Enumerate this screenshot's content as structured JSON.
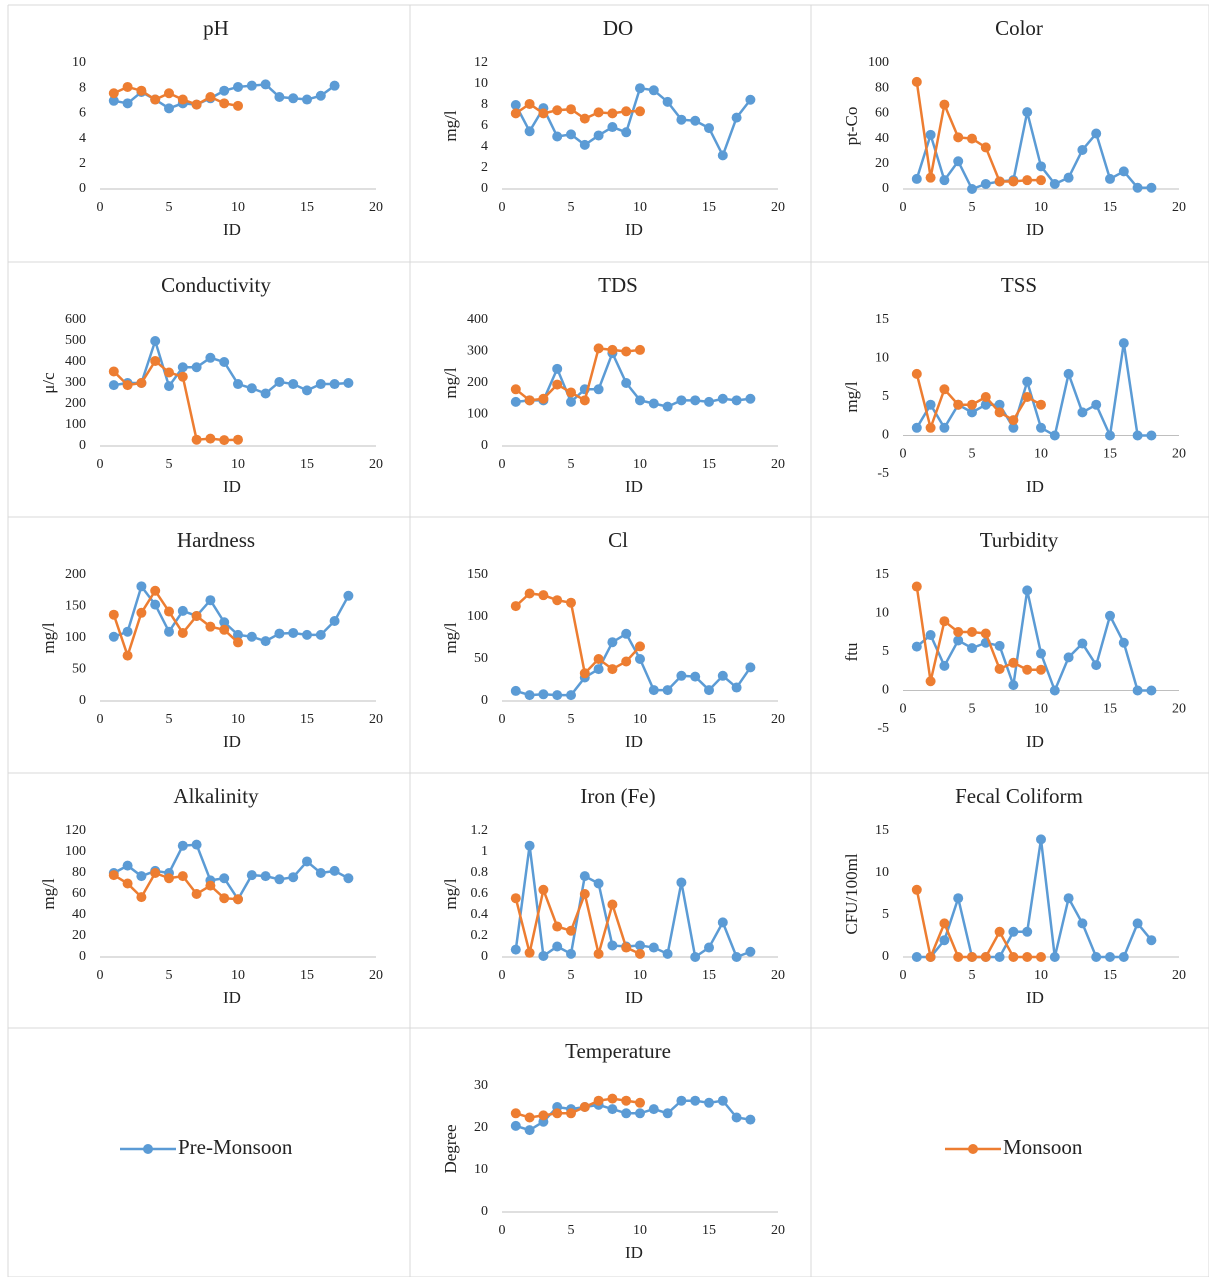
{
  "legend": [
    {
      "name": "Pre-Monsoon",
      "color": "#5b9bd5"
    },
    {
      "name": "Monsoon",
      "color": "#ed7d31"
    }
  ],
  "chart_data": [
    {
      "type": "line",
      "title": "pH",
      "xlabel": "ID",
      "x": [
        1,
        2,
        3,
        4,
        5,
        6,
        7,
        8,
        9,
        10,
        11,
        12,
        13,
        14,
        15,
        16,
        17,
        18
      ],
      "xlim": [
        0,
        20
      ],
      "xticks": [
        0,
        5,
        10,
        15,
        20
      ],
      "ylim": [
        0,
        10
      ],
      "yticks": [
        0,
        2,
        4,
        6,
        8,
        10
      ],
      "series": [
        {
          "values": [
            7.0,
            6.8,
            7.7,
            7.1,
            6.4,
            6.8,
            6.7,
            7.2,
            7.8,
            8.1,
            8.2,
            8.3,
            7.3,
            7.2,
            7.1,
            7.4,
            8.2,
            null
          ]
        },
        {
          "values": [
            7.6,
            8.1,
            7.8,
            7.1,
            7.6,
            7.1,
            6.7,
            7.3,
            6.8,
            6.6,
            null,
            null,
            null,
            null,
            null,
            null,
            null,
            null
          ]
        }
      ]
    },
    {
      "type": "line",
      "title": "DO",
      "xlabel": "ID",
      "ylabel": "mg/l",
      "x": [
        1,
        2,
        3,
        4,
        5,
        6,
        7,
        8,
        9,
        10,
        11,
        12,
        13,
        14,
        15,
        16,
        17,
        18
      ],
      "xlim": [
        0,
        20
      ],
      "xticks": [
        0,
        5,
        10,
        15,
        20
      ],
      "ylim": [
        0,
        12
      ],
      "yticks": [
        0,
        2,
        4,
        6,
        8,
        10,
        12
      ],
      "series": [
        {
          "values": [
            8.0,
            5.5,
            7.7,
            5.0,
            5.2,
            4.2,
            5.1,
            5.9,
            5.4,
            9.6,
            9.4,
            8.3,
            6.6,
            6.5,
            5.8,
            3.2,
            6.8,
            8.5
          ]
        },
        {
          "values": [
            7.2,
            8.1,
            7.2,
            7.5,
            7.6,
            6.7,
            7.3,
            7.2,
            7.4,
            7.4,
            null,
            null,
            null,
            null,
            null,
            null,
            null,
            null
          ]
        }
      ]
    },
    {
      "type": "line",
      "title": "Color",
      "xlabel": "ID",
      "ylabel": "pt-Co",
      "x": [
        1,
        2,
        3,
        4,
        5,
        6,
        7,
        8,
        9,
        10,
        11,
        12,
        13,
        14,
        15,
        16,
        17,
        18
      ],
      "xlim": [
        0,
        20
      ],
      "xticks": [
        0,
        5,
        10,
        15,
        20
      ],
      "ylim": [
        0,
        100
      ],
      "yticks": [
        0,
        20,
        40,
        60,
        80,
        100
      ],
      "series": [
        {
          "values": [
            8,
            43,
            7,
            22,
            0,
            4,
            6,
            7,
            61,
            18,
            4,
            9,
            31,
            44,
            8,
            14,
            1,
            1
          ]
        },
        {
          "values": [
            85,
            9,
            67,
            41,
            40,
            33,
            6,
            6,
            7,
            7,
            null,
            null,
            null,
            null,
            null,
            null,
            null,
            null
          ]
        }
      ]
    },
    {
      "type": "line",
      "title": "Conductivity",
      "xlabel": "ID",
      "ylabel": "μ/c",
      "x": [
        1,
        2,
        3,
        4,
        5,
        6,
        7,
        8,
        9,
        10,
        11,
        12,
        13,
        14,
        15,
        16,
        17,
        18
      ],
      "xlim": [
        0,
        20
      ],
      "xticks": [
        0,
        5,
        10,
        15,
        20
      ],
      "ylim": [
        0,
        600
      ],
      "yticks": [
        0,
        100,
        200,
        300,
        400,
        500,
        600
      ],
      "series": [
        {
          "values": [
            290,
            300,
            300,
            500,
            285,
            375,
            375,
            420,
            400,
            295,
            275,
            250,
            305,
            295,
            265,
            295,
            295,
            300
          ]
        },
        {
          "values": [
            355,
            290,
            300,
            405,
            350,
            330,
            30,
            35,
            28,
            30,
            null,
            null,
            null,
            null,
            null,
            null,
            null,
            null
          ]
        }
      ]
    },
    {
      "type": "line",
      "title": "TDS",
      "xlabel": "ID",
      "ylabel": "mg/l",
      "x": [
        1,
        2,
        3,
        4,
        5,
        6,
        7,
        8,
        9,
        10,
        11,
        12,
        13,
        14,
        15,
        16,
        17,
        18
      ],
      "xlim": [
        0,
        20
      ],
      "xticks": [
        0,
        5,
        10,
        15,
        20
      ],
      "ylim": [
        0,
        400
      ],
      "yticks": [
        0,
        100,
        200,
        300,
        400
      ],
      "series": [
        {
          "values": [
            140,
            145,
            145,
            245,
            140,
            180,
            180,
            295,
            200,
            145,
            135,
            125,
            145,
            145,
            140,
            150,
            145,
            150
          ]
        },
        {
          "values": [
            180,
            145,
            150,
            195,
            170,
            145,
            310,
            305,
            300,
            305,
            null,
            null,
            null,
            null,
            null,
            null,
            null,
            null
          ]
        }
      ]
    },
    {
      "type": "line",
      "title": "TSS",
      "xlabel": "ID",
      "ylabel": "mg/l",
      "x": [
        1,
        2,
        3,
        4,
        5,
        6,
        7,
        8,
        9,
        10,
        11,
        12,
        13,
        14,
        15,
        16,
        17,
        18
      ],
      "xlim": [
        0,
        20
      ],
      "xticks": [
        0,
        5,
        10,
        15,
        20
      ],
      "ylim": [
        -5,
        15
      ],
      "yticks": [
        -5,
        0,
        5,
        10,
        15
      ],
      "series": [
        {
          "values": [
            1,
            4,
            1,
            4,
            3,
            4,
            4,
            1,
            7,
            1,
            0,
            8,
            3,
            4,
            0,
            12,
            0,
            0
          ]
        },
        {
          "values": [
            8,
            1,
            6,
            4,
            4,
            5,
            3,
            2,
            5,
            4,
            null,
            null,
            null,
            null,
            null,
            null,
            null,
            null
          ]
        }
      ]
    },
    {
      "type": "line",
      "title": "Hardness",
      "xlabel": "ID",
      "ylabel": "mg/l",
      "x": [
        1,
        2,
        3,
        4,
        5,
        6,
        7,
        8,
        9,
        10,
        11,
        12,
        13,
        14,
        15,
        16,
        17,
        18
      ],
      "xlim": [
        0,
        20
      ],
      "xticks": [
        0,
        5,
        10,
        15,
        20
      ],
      "ylim": [
        0,
        200
      ],
      "yticks": [
        0,
        50,
        100,
        150,
        200
      ],
      "series": [
        {
          "values": [
            102,
            110,
            182,
            153,
            110,
            143,
            135,
            160,
            125,
            105,
            102,
            95,
            107,
            108,
            105,
            105,
            127,
            167
          ]
        },
        {
          "values": [
            137,
            72,
            140,
            175,
            142,
            108,
            135,
            118,
            113,
            93,
            null,
            null,
            null,
            null,
            null,
            null,
            null,
            null
          ]
        }
      ]
    },
    {
      "type": "line",
      "title": "Cl",
      "xlabel": "ID",
      "ylabel": "mg/l",
      "x": [
        1,
        2,
        3,
        4,
        5,
        6,
        7,
        8,
        9,
        10,
        11,
        12,
        13,
        14,
        15,
        16,
        17,
        18
      ],
      "xlim": [
        0,
        20
      ],
      "xticks": [
        0,
        5,
        10,
        15,
        20
      ],
      "ylim": [
        0,
        150
      ],
      "yticks": [
        0,
        50,
        100,
        150
      ],
      "series": [
        {
          "values": [
            12,
            7,
            8,
            7,
            7,
            28,
            38,
            70,
            80,
            50,
            13,
            13,
            30,
            29,
            13,
            30,
            16,
            40
          ]
        },
        {
          "values": [
            113,
            128,
            126,
            120,
            117,
            33,
            50,
            38,
            47,
            65,
            null,
            null,
            null,
            null,
            null,
            null,
            null,
            null
          ]
        }
      ]
    },
    {
      "type": "line",
      "title": "Turbidity",
      "xlabel": "ID",
      "ylabel": "ftu",
      "x": [
        1,
        2,
        3,
        4,
        5,
        6,
        7,
        8,
        9,
        10,
        11,
        12,
        13,
        14,
        15,
        16,
        17,
        18
      ],
      "xlim": [
        0,
        20
      ],
      "xticks": [
        0,
        5,
        10,
        15,
        20
      ],
      "ylim": [
        -5,
        15
      ],
      "yticks": [
        -5,
        0,
        5,
        10,
        15
      ],
      "series": [
        {
          "values": [
            5.7,
            7.2,
            3.2,
            6.5,
            5.5,
            6.2,
            5.8,
            0.7,
            13,
            4.8,
            0,
            4.3,
            6.1,
            3.3,
            9.7,
            6.2,
            0,
            0
          ]
        },
        {
          "values": [
            13.5,
            1.2,
            9,
            7.6,
            7.6,
            7.4,
            2.8,
            3.6,
            2.7,
            2.7,
            null,
            null,
            null,
            null,
            null,
            null,
            null,
            null
          ]
        }
      ]
    },
    {
      "type": "line",
      "title": "Alkalinity",
      "xlabel": "ID",
      "ylabel": "mg/l",
      "x": [
        1,
        2,
        3,
        4,
        5,
        6,
        7,
        8,
        9,
        10,
        11,
        12,
        13,
        14,
        15,
        16,
        17,
        18
      ],
      "xlim": [
        0,
        20
      ],
      "xticks": [
        0,
        5,
        10,
        15,
        20
      ],
      "ylim": [
        0,
        120
      ],
      "yticks": [
        0,
        20,
        40,
        60,
        80,
        100,
        120
      ],
      "series": [
        {
          "values": [
            80,
            87,
            77,
            82,
            80,
            106,
            107,
            73,
            75,
            55,
            78,
            77,
            74,
            76,
            91,
            80,
            82,
            75
          ]
        },
        {
          "values": [
            78,
            70,
            57,
            80,
            75,
            77,
            60,
            68,
            56,
            55,
            null,
            null,
            null,
            null,
            null,
            null,
            null,
            null
          ]
        }
      ]
    },
    {
      "type": "line",
      "title": "Iron (Fe)",
      "xlabel": "ID",
      "ylabel": "mg/l",
      "x": [
        1,
        2,
        3,
        4,
        5,
        6,
        7,
        8,
        9,
        10,
        11,
        12,
        13,
        14,
        15,
        16,
        17,
        18
      ],
      "xlim": [
        0,
        20
      ],
      "xticks": [
        0,
        5,
        10,
        15,
        20
      ],
      "ylim": [
        0,
        1.2
      ],
      "yticks": [
        0,
        0.2,
        0.4,
        0.6,
        0.8,
        1,
        1.2
      ],
      "series": [
        {
          "values": [
            0.07,
            1.06,
            0.01,
            0.1,
            0.03,
            0.77,
            0.7,
            0.11,
            0.1,
            0.11,
            0.09,
            0.03,
            0.71,
            0,
            0.09,
            0.33,
            0,
            0.05
          ]
        },
        {
          "values": [
            0.56,
            0.04,
            0.64,
            0.29,
            0.25,
            0.6,
            0.03,
            0.5,
            0.09,
            0.03,
            null,
            null,
            null,
            null,
            null,
            null,
            null,
            null
          ]
        }
      ]
    },
    {
      "type": "line",
      "title": "Fecal Coliform",
      "xlabel": "ID",
      "ylabel": "CFU/100ml",
      "x": [
        1,
        2,
        3,
        4,
        5,
        6,
        7,
        8,
        9,
        10,
        11,
        12,
        13,
        14,
        15,
        16,
        17,
        18
      ],
      "xlim": [
        0,
        20
      ],
      "xticks": [
        0,
        5,
        10,
        15,
        20
      ],
      "ylim": [
        0,
        15
      ],
      "yticks": [
        0,
        5,
        10,
        15
      ],
      "series": [
        {
          "values": [
            0,
            0,
            2,
            7,
            0,
            0,
            0,
            3,
            3,
            14,
            0,
            7,
            4,
            0,
            0,
            0,
            4,
            2
          ]
        },
        {
          "values": [
            8,
            0,
            4,
            0,
            0,
            0,
            3,
            0,
            0,
            0,
            null,
            null,
            null,
            null,
            null,
            null,
            null,
            null
          ]
        }
      ]
    },
    {
      "type": "line",
      "title": "Temperature",
      "xlabel": "ID",
      "ylabel": "Degree",
      "x": [
        1,
        2,
        3,
        4,
        5,
        6,
        7,
        8,
        9,
        10,
        11,
        12,
        13,
        14,
        15,
        16,
        17,
        18
      ],
      "xlim": [
        0,
        20
      ],
      "xticks": [
        0,
        5,
        10,
        15,
        20
      ],
      "ylim": [
        0,
        30
      ],
      "yticks": [
        0,
        10,
        20,
        30
      ],
      "series": [
        {
          "values": [
            20.5,
            19.5,
            21.5,
            25,
            24.5,
            25,
            25.5,
            24.5,
            23.5,
            23.5,
            24.5,
            23.5,
            26.5,
            26.5,
            26,
            26.5,
            22.5,
            22
          ]
        },
        {
          "values": [
            23.5,
            22.5,
            23,
            23.5,
            23.5,
            25,
            26.5,
            27,
            26.5,
            26,
            null,
            null,
            null,
            null,
            null,
            null,
            null,
            null
          ]
        }
      ]
    }
  ]
}
